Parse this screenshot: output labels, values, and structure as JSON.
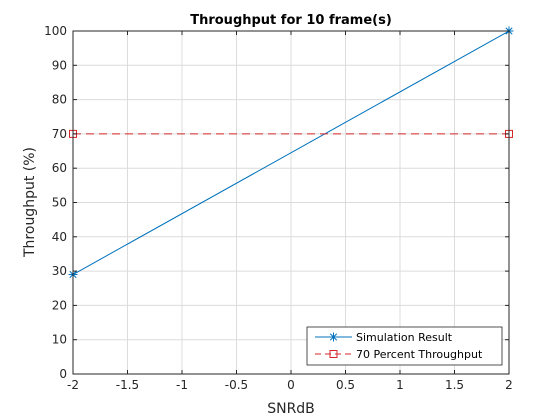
{
  "chart_data": {
    "type": "line",
    "title": "Throughput for 10 frame(s)",
    "xlabel": "SNRdB",
    "ylabel": "Throughput (%)",
    "xlim": [
      -2,
      2
    ],
    "ylim": [
      0,
      100
    ],
    "xticks": [
      -2,
      -1.5,
      -1,
      -0.5,
      0,
      0.5,
      1,
      1.5,
      2
    ],
    "xtick_labels": [
      "-2",
      "-1.5",
      "-1",
      "-0.5",
      "0",
      "0.5",
      "1",
      "1.5",
      "2"
    ],
    "yticks": [
      0,
      10,
      20,
      30,
      40,
      50,
      60,
      70,
      80,
      90,
      100
    ],
    "ytick_labels": [
      "0",
      "10",
      "20",
      "30",
      "40",
      "50",
      "60",
      "70",
      "80",
      "90",
      "100"
    ],
    "grid": true,
    "legend_position": "bottom-right",
    "series": [
      {
        "name": "Simulation Result",
        "x": [
          -2,
          2
        ],
        "y": [
          29,
          100
        ],
        "color": "#0072bd",
        "marker": "asterisk",
        "linestyle": "solid"
      },
      {
        "name": "70 Percent Throughput",
        "x": [
          -2,
          2
        ],
        "y": [
          70,
          70
        ],
        "color": "#d62728",
        "marker": "square",
        "linestyle": "dashed"
      }
    ]
  }
}
